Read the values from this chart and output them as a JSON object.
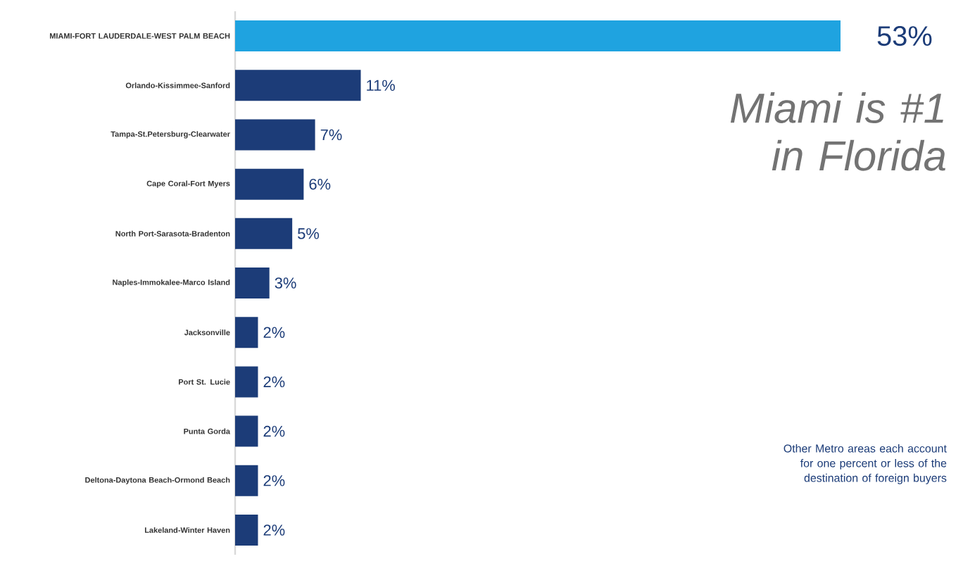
{
  "chart_data": {
    "type": "bar",
    "orientation": "horizontal",
    "categories": [
      "MIAMI-FORT LAUDERDALE-WEST PALM BEACH",
      "Orlando-Kissimmee-Sanford",
      "Tampa-St.Petersburg-Clearwater",
      "Cape Coral-Fort Myers",
      "North Port-Sarasota-Bradenton",
      "Naples-Immokalee-Marco Island",
      "Jacksonville",
      "Port St. Lucie",
      "Punta Gorda",
      "Deltona-Daytona Beach-Ormond Beach",
      "Lakeland-Winter Haven"
    ],
    "values": [
      53,
      11,
      7,
      6,
      5,
      3,
      2,
      2,
      2,
      2,
      2
    ],
    "colors": [
      "#1fa3e0",
      "#1c3c78",
      "#1c3c78",
      "#1c3c78",
      "#1c3c78",
      "#1c3c78",
      "#1c3c78",
      "#1c3c78",
      "#1c3c78",
      "#1c3c78",
      "#1c3c78"
    ],
    "value_labels": [
      "53%",
      "11%",
      "7%",
      "6%",
      "5%",
      "3%",
      "2%",
      "2%",
      "2%",
      "2%",
      "2%"
    ],
    "annotations": [
      "Miami is #1 in Florida",
      "Other Metro areas each account for one percent or less of the destination of foreign buyers"
    ]
  }
}
